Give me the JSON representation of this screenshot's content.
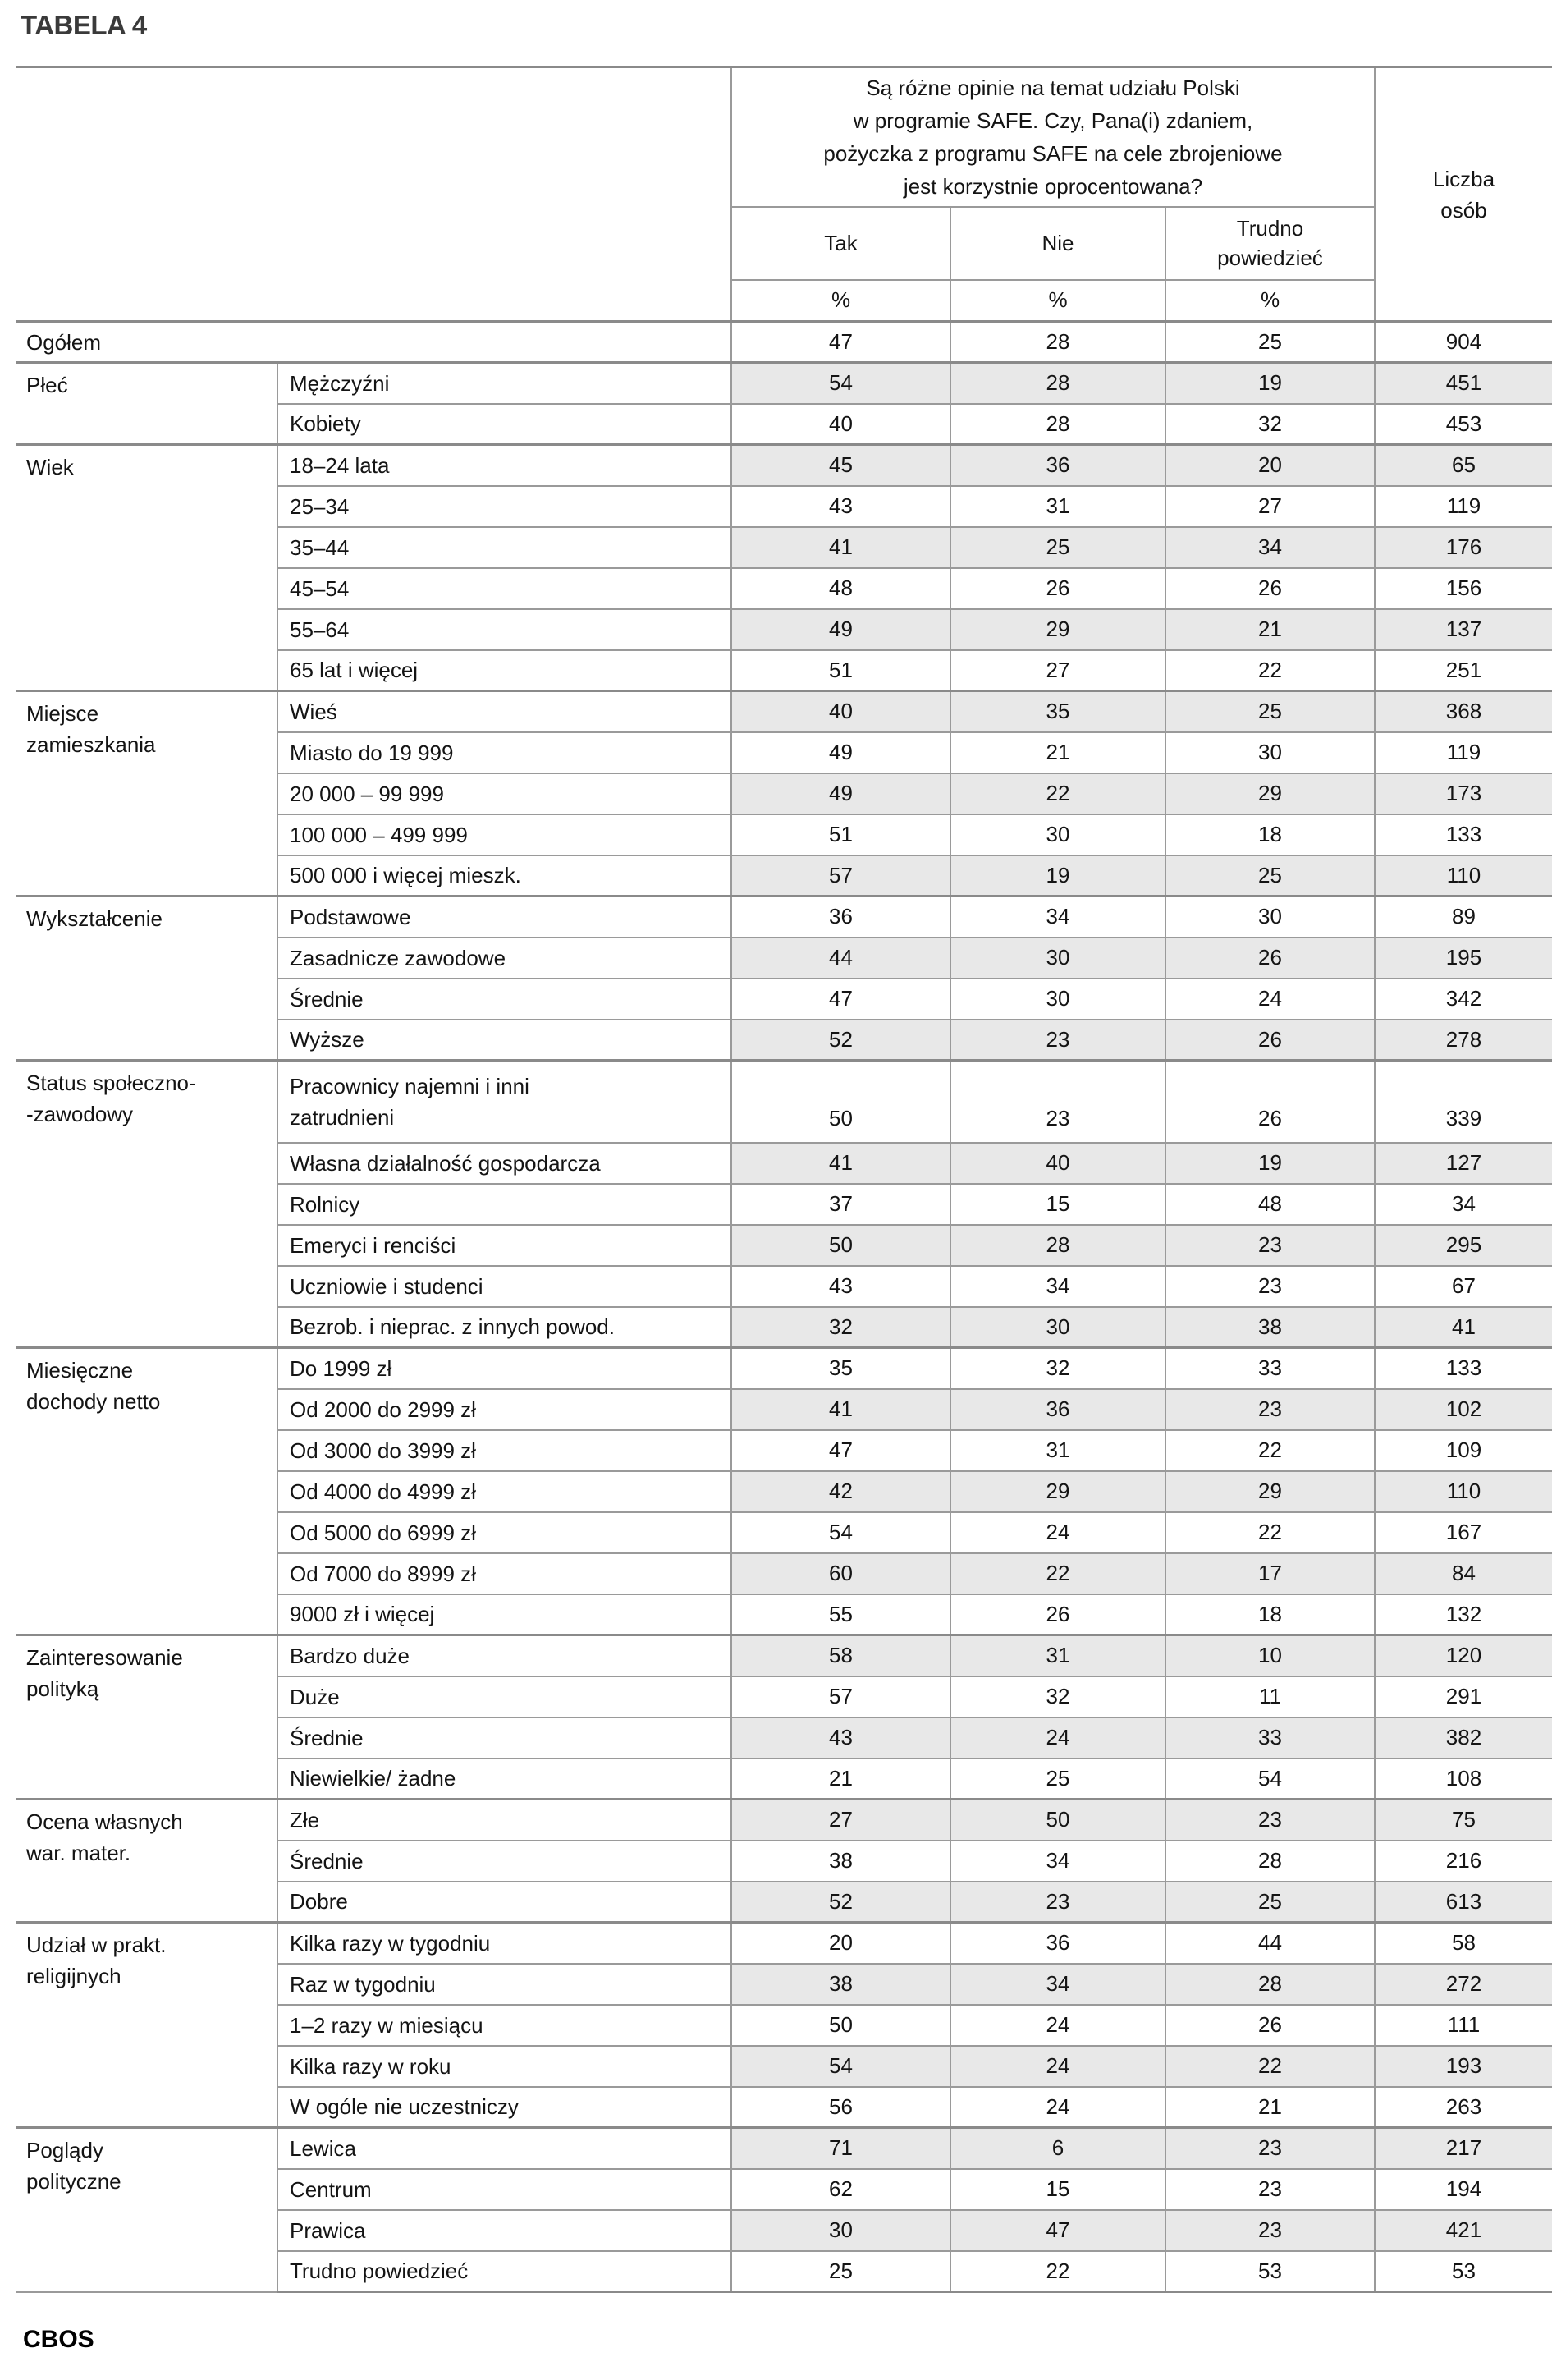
{
  "title": "TABELA 4",
  "footer_logo": "CBOS",
  "colors": {
    "shade": "#e8e8e8",
    "border_thin": "#9a9a9a",
    "border_thick": "#8a8a8a",
    "title": "#3a3a3a",
    "text": "#141414"
  },
  "table": {
    "question": "Są różne opinie na temat udziału Polski\nw programie SAFE. Czy, Pana(i) zdaniem,\npożyczka z programu SAFE na cele zbrojeniowe\njest korzystnie oprocentowana?",
    "columns": [
      "Tak",
      "Nie",
      "Trudno\npowiedzieć"
    ],
    "unit": "%",
    "count_header": "Liczba\nosób",
    "total": {
      "label": "Ogółem",
      "values": [
        47,
        28,
        25,
        904
      ],
      "shaded": false
    },
    "groups": [
      {
        "category": "Płeć",
        "rows": [
          {
            "label": "Mężczyźni",
            "values": [
              54,
              28,
              19,
              451
            ],
            "shaded": true
          },
          {
            "label": "Kobiety",
            "values": [
              40,
              28,
              32,
              453
            ],
            "shaded": false
          }
        ]
      },
      {
        "category": "Wiek",
        "rows": [
          {
            "label": "18–24 lata",
            "values": [
              45,
              36,
              20,
              65
            ],
            "shaded": true
          },
          {
            "label": "25–34",
            "values": [
              43,
              31,
              27,
              119
            ],
            "shaded": false
          },
          {
            "label": "35–44",
            "values": [
              41,
              25,
              34,
              176
            ],
            "shaded": true
          },
          {
            "label": "45–54",
            "values": [
              48,
              26,
              26,
              156
            ],
            "shaded": false
          },
          {
            "label": "55–64",
            "values": [
              49,
              29,
              21,
              137
            ],
            "shaded": true
          },
          {
            "label": "65 lat i więcej",
            "values": [
              51,
              27,
              22,
              251
            ],
            "shaded": false
          }
        ]
      },
      {
        "category": "Miejsce\nzamieszkania",
        "rows": [
          {
            "label": "Wieś",
            "values": [
              40,
              35,
              25,
              368
            ],
            "shaded": true
          },
          {
            "label": "Miasto do 19 999",
            "values": [
              49,
              21,
              30,
              119
            ],
            "shaded": false
          },
          {
            "label": "20 000 – 99 999",
            "values": [
              49,
              22,
              29,
              173
            ],
            "shaded": true
          },
          {
            "label": "100 000 – 499 999",
            "values": [
              51,
              30,
              18,
              133
            ],
            "shaded": false
          },
          {
            "label": "500 000 i więcej mieszk.",
            "values": [
              57,
              19,
              25,
              110
            ],
            "shaded": true
          }
        ]
      },
      {
        "category": "Wykształcenie",
        "rows": [
          {
            "label": "Podstawowe",
            "values": [
              36,
              34,
              30,
              89
            ],
            "shaded": false
          },
          {
            "label": "Zasadnicze zawodowe",
            "values": [
              44,
              30,
              26,
              195
            ],
            "shaded": true
          },
          {
            "label": "Średnie",
            "values": [
              47,
              30,
              24,
              342
            ],
            "shaded": false
          },
          {
            "label": "Wyższe",
            "values": [
              52,
              23,
              26,
              278
            ],
            "shaded": true
          }
        ]
      },
      {
        "category": "Status społeczno-\n-zawodowy",
        "rows": [
          {
            "label": "Pracownicy najemni i inni\nzatrudnieni",
            "values": [
              50,
              23,
              26,
              339
            ],
            "shaded": false,
            "tall": true
          },
          {
            "label": "Własna działalność gospodarcza",
            "values": [
              41,
              40,
              19,
              127
            ],
            "shaded": true
          },
          {
            "label": "Rolnicy",
            "values": [
              37,
              15,
              48,
              34
            ],
            "shaded": false
          },
          {
            "label": "Emeryci i renciści",
            "values": [
              50,
              28,
              23,
              295
            ],
            "shaded": true
          },
          {
            "label": "Uczniowie i studenci",
            "values": [
              43,
              34,
              23,
              67
            ],
            "shaded": false
          },
          {
            "label": "Bezrob. i nieprac. z innych powod.",
            "values": [
              32,
              30,
              38,
              41
            ],
            "shaded": true
          }
        ]
      },
      {
        "category": "Miesięczne\ndochody netto",
        "rows": [
          {
            "label": "Do 1999 zł",
            "values": [
              35,
              32,
              33,
              133
            ],
            "shaded": false
          },
          {
            "label": "Od 2000 do 2999 zł",
            "values": [
              41,
              36,
              23,
              102
            ],
            "shaded": true
          },
          {
            "label": "Od 3000 do 3999 zł",
            "values": [
              47,
              31,
              22,
              109
            ],
            "shaded": false
          },
          {
            "label": "Od 4000 do 4999 zł",
            "values": [
              42,
              29,
              29,
              110
            ],
            "shaded": true
          },
          {
            "label": "Od 5000 do 6999 zł",
            "values": [
              54,
              24,
              22,
              167
            ],
            "shaded": false
          },
          {
            "label": "Od 7000 do 8999 zł",
            "values": [
              60,
              22,
              17,
              84
            ],
            "shaded": true
          },
          {
            "label": "9000 zł i więcej",
            "values": [
              55,
              26,
              18,
              132
            ],
            "shaded": false
          }
        ]
      },
      {
        "category": "Zainteresowanie\npolityką",
        "rows": [
          {
            "label": "Bardzo duże",
            "values": [
              58,
              31,
              10,
              120
            ],
            "shaded": true
          },
          {
            "label": "Duże",
            "values": [
              57,
              32,
              11,
              291
            ],
            "shaded": false
          },
          {
            "label": "Średnie",
            "values": [
              43,
              24,
              33,
              382
            ],
            "shaded": true
          },
          {
            "label": "Niewielkie/ żadne",
            "values": [
              21,
              25,
              54,
              108
            ],
            "shaded": false
          }
        ]
      },
      {
        "category": "Ocena własnych\nwar. mater.",
        "rows": [
          {
            "label": "Złe",
            "values": [
              27,
              50,
              23,
              75
            ],
            "shaded": true
          },
          {
            "label": "Średnie",
            "values": [
              38,
              34,
              28,
              216
            ],
            "shaded": false
          },
          {
            "label": "Dobre",
            "values": [
              52,
              23,
              25,
              613
            ],
            "shaded": true
          }
        ]
      },
      {
        "category": "Udział w prakt.\nreligijnych",
        "rows": [
          {
            "label": "Kilka razy w tygodniu",
            "values": [
              20,
              36,
              44,
              58
            ],
            "shaded": false
          },
          {
            "label": "Raz w tygodniu",
            "values": [
              38,
              34,
              28,
              272
            ],
            "shaded": true
          },
          {
            "label": "1–2 razy w miesiącu",
            "values": [
              50,
              24,
              26,
              111
            ],
            "shaded": false
          },
          {
            "label": "Kilka razy w roku",
            "values": [
              54,
              24,
              22,
              193
            ],
            "shaded": true
          },
          {
            "label": "W ogóle nie uczestniczy",
            "values": [
              56,
              24,
              21,
              263
            ],
            "shaded": false
          }
        ]
      },
      {
        "category": "Poglądy\npolityczne",
        "rows": [
          {
            "label": "Lewica",
            "values": [
              71,
              6,
              23,
              217
            ],
            "shaded": true
          },
          {
            "label": "Centrum",
            "values": [
              62,
              15,
              23,
              194
            ],
            "shaded": false
          },
          {
            "label": "Prawica",
            "values": [
              30,
              47,
              23,
              421
            ],
            "shaded": true
          },
          {
            "label": "Trudno powiedzieć",
            "values": [
              25,
              22,
              53,
              53
            ],
            "shaded": false
          }
        ]
      }
    ]
  }
}
